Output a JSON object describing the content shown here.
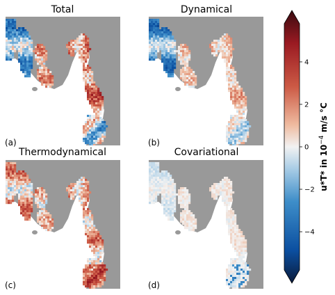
{
  "chart_data": {
    "type": "heatmap",
    "panels": [
      {
        "title": "Total",
        "letter": "(a)"
      },
      {
        "title": "Dynamical",
        "letter": "(b)"
      },
      {
        "title": "Thermodynamical",
        "letter": "(c)"
      },
      {
        "title": "Covariational",
        "letter": "(d)"
      }
    ],
    "colorbar": {
      "label_main": "u*T* in 10",
      "label_exp": "−4",
      "label_unit": " m/s °C",
      "ticks": [
        {
          "value": 4,
          "label": "4"
        },
        {
          "value": 2,
          "label": "2"
        },
        {
          "value": 0,
          "label": "0"
        },
        {
          "value": -2,
          "label": "−2"
        },
        {
          "value": -4,
          "label": "−4"
        }
      ],
      "range": [
        -5.8,
        5.8
      ],
      "extend": "both",
      "colormap": "diverging blue-white-red",
      "colors": [
        "#0a1a3a",
        "#0b4fa0",
        "#3e8ec9",
        "#a9cde6",
        "#f2f2f2",
        "#efbba0",
        "#cc5a45",
        "#9a1a22",
        "#3a0b10"
      ]
    },
    "land_color": "#999999",
    "ocean_color": "#ffffff"
  }
}
